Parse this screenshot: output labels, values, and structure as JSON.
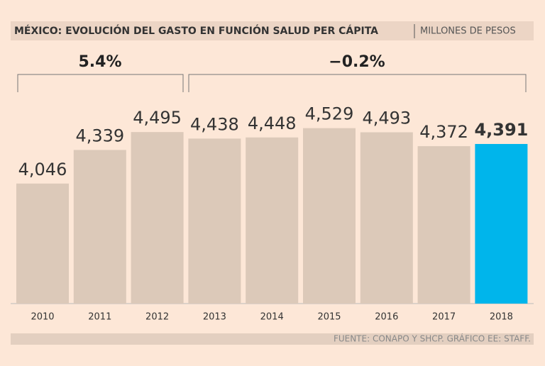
{
  "chart_data": {
    "type": "bar",
    "title": "MÉXICO: EVOLUCIÓN DEL GASTO EN FUNCIÓN SALUD PER CÁPITA",
    "subtitle": "MILLONES DE PESOS",
    "source": "FUENTE: CONAPO Y SHCP. GRÁFICO EE: STAFF.",
    "annotations": [
      "5.4%",
      "−0.2%"
    ],
    "categories": [
      "2010",
      "2011",
      "2012",
      "2013",
      "2014",
      "2015",
      "2016",
      "2017",
      "2018"
    ],
    "values": [
      4046,
      4339,
      4495,
      4438,
      4448,
      4529,
      4493,
      4372,
      4391
    ],
    "value_labels": [
      "4,046",
      "4,339",
      "4,495",
      "4,438",
      "4,448",
      "4,529",
      "4,493",
      "4,372",
      "4,391"
    ],
    "colors": [
      "#dcc9b9",
      "#dcc9b9",
      "#dcc9b9",
      "#dcc9b9",
      "#dcc9b9",
      "#dcc9b9",
      "#dcc9b9",
      "#dcc9b9",
      "#00b5eb"
    ],
    "ylim": [
      3000,
      4700
    ]
  }
}
